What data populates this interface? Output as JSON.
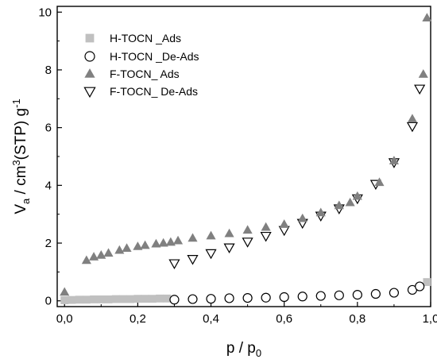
{
  "chart_data": {
    "type": "scatter",
    "xlim": [
      -0.02,
      1.0
    ],
    "ylim": [
      -0.2,
      10.2
    ],
    "x_ticks": [
      "0,0",
      "0,2",
      "0,4",
      "0,6",
      "0,8",
      "1,0"
    ],
    "x_tick_values": [
      0.0,
      0.2,
      0.4,
      0.6,
      0.8,
      1.0
    ],
    "y_ticks": [
      "0",
      "2",
      "4",
      "6",
      "8",
      "10"
    ],
    "y_tick_values": [
      0,
      2,
      4,
      6,
      8,
      10
    ],
    "xlabel": {
      "main": "p / p",
      "sub": "0"
    },
    "ylabel": {
      "v": "V",
      "a": "a",
      "mid": " / cm",
      "sup3": "3",
      "stp": "(STP) g",
      "supm1": "-1"
    },
    "grid": false,
    "legend_position": "top-left",
    "colors": {
      "light_gray": "#c0c0c0",
      "dark_gray": "#808080",
      "black": "#000000",
      "white": "#ffffff"
    },
    "series": [
      {
        "name": "H-TOCN _Ads",
        "marker": "square-filled",
        "color": "#c0c0c0",
        "points": [
          [
            0.0,
            0.02
          ],
          [
            0.02,
            0.03
          ],
          [
            0.04,
            0.04
          ],
          [
            0.06,
            0.04
          ],
          [
            0.08,
            0.05
          ],
          [
            0.1,
            0.05
          ],
          [
            0.12,
            0.05
          ],
          [
            0.14,
            0.06
          ],
          [
            0.16,
            0.06
          ],
          [
            0.18,
            0.06
          ],
          [
            0.2,
            0.07
          ],
          [
            0.22,
            0.07
          ],
          [
            0.24,
            0.07
          ],
          [
            0.26,
            0.08
          ],
          [
            0.28,
            0.08
          ],
          [
            0.99,
            0.65
          ]
        ]
      },
      {
        "name": "H-TOCN _De-Ads",
        "marker": "circle-open",
        "color": "#000000",
        "points": [
          [
            0.3,
            0.04
          ],
          [
            0.35,
            0.06
          ],
          [
            0.4,
            0.07
          ],
          [
            0.45,
            0.09
          ],
          [
            0.5,
            0.1
          ],
          [
            0.55,
            0.11
          ],
          [
            0.6,
            0.13
          ],
          [
            0.65,
            0.15
          ],
          [
            0.7,
            0.17
          ],
          [
            0.75,
            0.19
          ],
          [
            0.8,
            0.21
          ],
          [
            0.85,
            0.24
          ],
          [
            0.9,
            0.28
          ],
          [
            0.95,
            0.38
          ],
          [
            0.97,
            0.5
          ]
        ]
      },
      {
        "name": "F-TOCN_ Ads",
        "marker": "triangle-up-filled",
        "color": "#808080",
        "points": [
          [
            0.0,
            0.3
          ],
          [
            0.06,
            1.4
          ],
          [
            0.08,
            1.52
          ],
          [
            0.1,
            1.58
          ],
          [
            0.12,
            1.65
          ],
          [
            0.15,
            1.75
          ],
          [
            0.17,
            1.82
          ],
          [
            0.2,
            1.88
          ],
          [
            0.22,
            1.92
          ],
          [
            0.25,
            1.97
          ],
          [
            0.27,
            2.0
          ],
          [
            0.29,
            2.03
          ],
          [
            0.31,
            2.08
          ],
          [
            0.35,
            2.17
          ],
          [
            0.4,
            2.25
          ],
          [
            0.45,
            2.33
          ],
          [
            0.5,
            2.45
          ],
          [
            0.55,
            2.55
          ],
          [
            0.6,
            2.65
          ],
          [
            0.65,
            2.85
          ],
          [
            0.7,
            3.05
          ],
          [
            0.75,
            3.3
          ],
          [
            0.78,
            3.4
          ],
          [
            0.8,
            3.62
          ],
          [
            0.86,
            4.1
          ],
          [
            0.9,
            4.85
          ],
          [
            0.95,
            6.3
          ],
          [
            0.98,
            7.85
          ],
          [
            0.99,
            9.8
          ]
        ]
      },
      {
        "name": "F-TOCN_ De-Ads",
        "marker": "triangle-down-open",
        "color": "#000000",
        "points": [
          [
            0.3,
            1.3
          ],
          [
            0.35,
            1.45
          ],
          [
            0.4,
            1.65
          ],
          [
            0.45,
            1.85
          ],
          [
            0.5,
            2.05
          ],
          [
            0.55,
            2.25
          ],
          [
            0.6,
            2.45
          ],
          [
            0.65,
            2.7
          ],
          [
            0.7,
            2.95
          ],
          [
            0.75,
            3.2
          ],
          [
            0.8,
            3.55
          ],
          [
            0.85,
            4.05
          ],
          [
            0.9,
            4.8
          ],
          [
            0.95,
            6.05
          ],
          [
            0.97,
            7.35
          ]
        ]
      }
    ]
  }
}
